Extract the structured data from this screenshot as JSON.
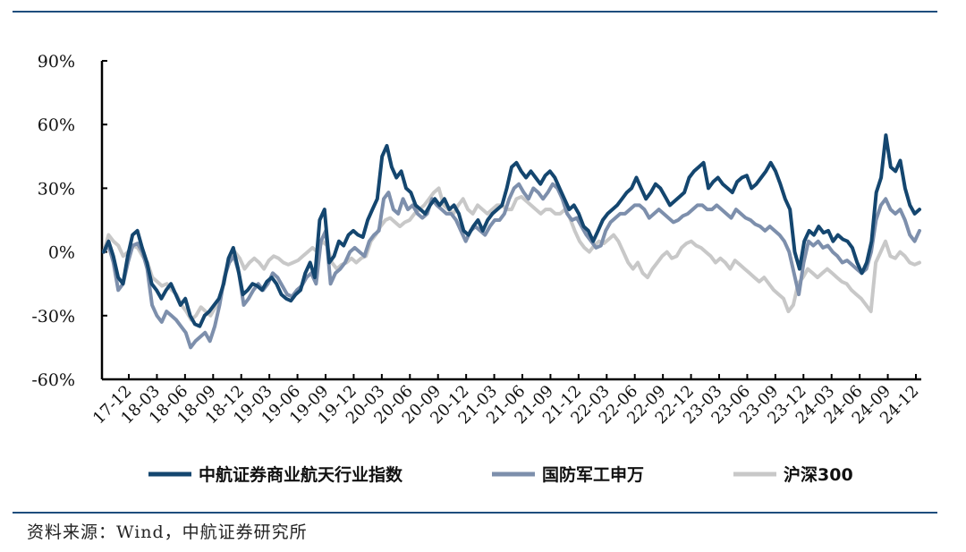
{
  "chart_data": {
    "type": "line",
    "title": "",
    "xlabel": "",
    "ylabel": "",
    "ylim": [
      -60,
      90
    ],
    "yticks": [
      -60,
      -30,
      0,
      30,
      60,
      90
    ],
    "ytick_labels": [
      "-60%",
      "-30%",
      "0%",
      "30%",
      "60%",
      "90%"
    ],
    "xtick_labels": [
      "17-12",
      "18-03",
      "18-06",
      "18-09",
      "18-12",
      "19-03",
      "19-06",
      "19-09",
      "19-12",
      "20-03",
      "20-06",
      "20-09",
      "20-12",
      "21-03",
      "21-06",
      "21-09",
      "21-12",
      "22-03",
      "22-06",
      "22-09",
      "22-12",
      "23-03",
      "23-06",
      "23-09",
      "23-12",
      "24-03",
      "24-06",
      "24-09",
      "24-12"
    ],
    "legend_position": "bottom",
    "series": [
      {
        "name": "中航证券商业航天行业指数",
        "color": "#14466f",
        "width": 4,
        "values": [
          0,
          5,
          -2,
          -12,
          -15,
          -2,
          8,
          10,
          2,
          -5,
          -15,
          -18,
          -22,
          -18,
          -15,
          -20,
          -25,
          -22,
          -30,
          -34,
          -35,
          -30,
          -28,
          -25,
          -22,
          -15,
          -3,
          2,
          -8,
          -20,
          -18,
          -15,
          -16,
          -18,
          -14,
          -12,
          -15,
          -20,
          -22,
          -23,
          -20,
          -18,
          -10,
          -5,
          -12,
          15,
          20,
          -5,
          -2,
          5,
          3,
          8,
          10,
          8,
          7,
          15,
          20,
          25,
          45,
          50,
          40,
          35,
          38,
          30,
          28,
          22,
          20,
          18,
          22,
          25,
          22,
          25,
          20,
          22,
          18,
          10,
          8,
          12,
          15,
          10,
          15,
          18,
          20,
          22,
          30,
          40,
          42,
          38,
          35,
          38,
          35,
          32,
          36,
          38,
          35,
          30,
          25,
          20,
          22,
          18,
          12,
          10,
          5,
          10,
          15,
          18,
          20,
          22,
          25,
          28,
          30,
          35,
          30,
          25,
          28,
          32,
          30,
          26,
          22,
          24,
          26,
          28,
          35,
          38,
          40,
          42,
          30,
          33,
          35,
          32,
          30,
          28,
          33,
          35,
          36,
          30,
          32,
          35,
          38,
          42,
          38,
          32,
          25,
          20,
          0,
          -8,
          5,
          10,
          8,
          12,
          9,
          10,
          5,
          8,
          6,
          5,
          2,
          -5,
          -10,
          -5,
          5,
          28,
          35,
          55,
          40,
          38,
          43,
          30,
          22,
          18,
          20
        ]
      },
      {
        "name": "国防军工申万",
        "color": "#7d8fac",
        "width": 4,
        "values": [
          0,
          3,
          -5,
          -18,
          -15,
          -5,
          3,
          4,
          0,
          -8,
          -25,
          -30,
          -33,
          -28,
          -30,
          -32,
          -35,
          -38,
          -45,
          -42,
          -40,
          -38,
          -42,
          -35,
          -25,
          -12,
          -5,
          -2,
          -10,
          -25,
          -22,
          -18,
          -15,
          -18,
          -15,
          -10,
          -12,
          -16,
          -20,
          -21,
          -18,
          -16,
          -12,
          -10,
          -15,
          5,
          10,
          -15,
          -10,
          -8,
          -5,
          0,
          2,
          0,
          -2,
          5,
          8,
          10,
          25,
          28,
          20,
          18,
          25,
          20,
          22,
          18,
          16,
          18,
          25,
          22,
          20,
          18,
          18,
          15,
          10,
          5,
          10,
          12,
          10,
          8,
          12,
          15,
          15,
          18,
          25,
          30,
          32,
          28,
          25,
          30,
          28,
          25,
          28,
          32,
          30,
          25,
          18,
          15,
          16,
          12,
          8,
          5,
          2,
          3,
          10,
          14,
          16,
          18,
          18,
          20,
          22,
          22,
          20,
          16,
          18,
          20,
          18,
          16,
          14,
          15,
          17,
          18,
          20,
          22,
          22,
          20,
          20,
          22,
          20,
          18,
          16,
          20,
          18,
          16,
          15,
          13,
          12,
          10,
          12,
          10,
          8,
          5,
          0,
          -10,
          -20,
          -5,
          5,
          3,
          5,
          2,
          3,
          0,
          -2,
          -5,
          -4,
          -6,
          -8,
          -10,
          -8,
          0,
          15,
          22,
          25,
          20,
          18,
          20,
          15,
          8,
          5,
          10
        ]
      },
      {
        "name": "沪深300",
        "color": "#c8c8c8",
        "width": 4,
        "values": [
          0,
          8,
          5,
          3,
          -2,
          0,
          3,
          2,
          -2,
          -5,
          -12,
          -14,
          -16,
          -15,
          -18,
          -20,
          -25,
          -28,
          -32,
          -30,
          -26,
          -28,
          -30,
          -26,
          -22,
          -10,
          -2,
          0,
          -3,
          -8,
          -5,
          -3,
          -5,
          -8,
          -4,
          -2,
          -3,
          -5,
          -6,
          -5,
          -4,
          -2,
          0,
          2,
          0,
          5,
          3,
          -5,
          -8,
          -6,
          -5,
          -3,
          -5,
          -3,
          -2,
          5,
          8,
          12,
          15,
          16,
          14,
          12,
          14,
          15,
          18,
          20,
          22,
          25,
          28,
          30,
          22,
          20,
          18,
          22,
          25,
          20,
          18,
          22,
          20,
          18,
          20,
          22,
          22,
          20,
          20,
          25,
          26,
          24,
          22,
          20,
          18,
          20,
          20,
          18,
          18,
          20,
          16,
          10,
          5,
          2,
          0,
          3,
          5,
          4,
          6,
          8,
          5,
          0,
          -5,
          -8,
          -5,
          -10,
          -12,
          -8,
          -5,
          -2,
          0,
          -3,
          -2,
          2,
          4,
          5,
          3,
          2,
          0,
          -2,
          -5,
          -3,
          -5,
          -8,
          -4,
          -6,
          -8,
          -10,
          -12,
          -14,
          -12,
          -15,
          -18,
          -20,
          -22,
          -28,
          -25,
          -15,
          -12,
          -8,
          -10,
          -12,
          -10,
          -8,
          -10,
          -12,
          -14,
          -15,
          -18,
          -20,
          -22,
          -25,
          -28,
          -5,
          0,
          5,
          -2,
          -3,
          0,
          -2,
          -5,
          -6,
          -5
        ]
      }
    ]
  },
  "source": "资料来源：Wind，中航证券研究所"
}
